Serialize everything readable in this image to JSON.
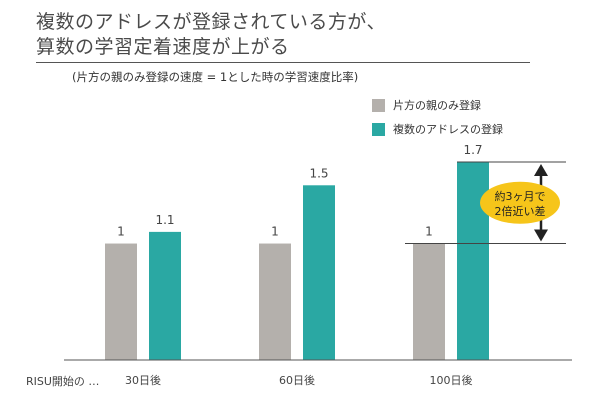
{
  "title": {
    "line1": "複数のアドレスが登録されている方が、",
    "line2": "算数の学習定着速度が上がる"
  },
  "subtitle": "(片方の親のみ登録の速度 = 1とした時の学習速度比率)",
  "x_axis_prefix": "RISU開始の …",
  "callout": {
    "line1": "約3ヶ月で",
    "line2": "2倍近い差"
  },
  "colors": {
    "gray": "#b4b0ac",
    "teal": "#2aa8a3",
    "callout": "#f6c51a",
    "arrow": "#222222",
    "axis": "#555555"
  },
  "chart_data": {
    "type": "bar",
    "categories": [
      "30日後",
      "60日後",
      "100日後"
    ],
    "series": [
      {
        "name": "片方の親のみ登録",
        "values": [
          1,
          1,
          1
        ],
        "labels": [
          "1",
          "1",
          "1"
        ],
        "color": "#b4b0ac"
      },
      {
        "name": "複数のアドレスの登録",
        "values": [
          1.1,
          1.5,
          1.7
        ],
        "labels": [
          "1.1",
          "1.5",
          "1.7"
        ],
        "color": "#2aa8a3"
      }
    ],
    "ylim": [
      0,
      1.7
    ],
    "grid": false,
    "legend": "top-right"
  }
}
